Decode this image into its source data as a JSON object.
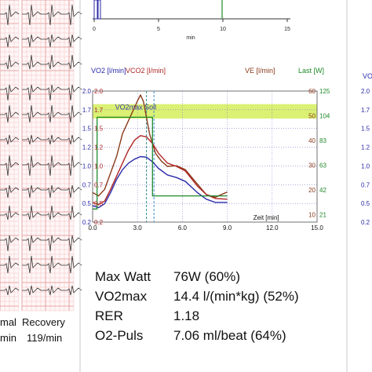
{
  "ecg": {
    "left_line1": "mal",
    "left_line2": "min",
    "right_line1": "Recovery",
    "right_line2": "119/min"
  },
  "top_chart": {
    "x_ticks": [
      "0",
      "5",
      "10",
      "15"
    ],
    "xlabel": "min"
  },
  "chart_data": [
    {
      "type": "line",
      "xlabel": "Zeit [min]",
      "x_ticks": [
        "0.0",
        "3.0",
        "6.0",
        "9.0",
        "12.0",
        "15.0"
      ],
      "xlim": [
        0,
        15
      ],
      "axes": [
        {
          "label": "VO2 [l/min]",
          "color": "#2a2aa8",
          "ticks": [
            "0.2",
            "0.5",
            "0.7",
            "1.0",
            "1.2",
            "1.5",
            "1.7",
            "2.0"
          ]
        },
        {
          "label": "VCO2 [l/min]",
          "color": "#b02525",
          "ticks": [
            "0.2",
            "0.5",
            "0.7",
            "1.0",
            "1.2",
            "1.5",
            "1.7",
            "2.0"
          ]
        },
        {
          "label": "VE [l/min]",
          "color": "#8a3a1a",
          "ticks": [
            "10",
            "20",
            "30",
            "40",
            "50",
            "60"
          ]
        },
        {
          "label": "Last [W]",
          "color": "#1f8a2a",
          "ticks": [
            "21",
            "42",
            "63",
            "83",
            "104",
            "125"
          ]
        }
      ],
      "band": {
        "label": "VO2max Soll",
        "ymin": 1.58,
        "ymax": 1.8,
        "color": "#d4ef5a"
      },
      "grid": true,
      "ylim": [
        0,
        2.0
      ],
      "vlines": [
        3.6,
        4.1
      ],
      "series": [
        {
          "color": "#8a3a1a",
          "x": [
            0.0,
            0.4,
            0.8,
            1.2,
            1.6,
            2.0,
            2.4,
            2.8,
            3.0,
            3.2,
            3.4,
            3.6,
            3.8,
            4.2,
            4.6,
            5.0,
            5.6,
            6.2,
            7.0,
            7.6,
            8.2,
            9.0
          ],
          "y": [
            0.45,
            0.4,
            0.5,
            0.75,
            1.0,
            1.35,
            1.55,
            1.75,
            1.85,
            1.94,
            1.84,
            1.6,
            1.35,
            1.05,
            0.93,
            0.85,
            0.86,
            0.8,
            0.58,
            0.42,
            0.38,
            0.46
          ]
        },
        {
          "color": "#b02525",
          "x": [
            0.0,
            0.4,
            0.8,
            1.2,
            1.6,
            2.0,
            2.4,
            2.8,
            3.2,
            3.6,
            4.0,
            4.4,
            5.0,
            5.6,
            6.2,
            7.0,
            7.6,
            8.2,
            9.0
          ],
          "y": [
            0.3,
            0.27,
            0.32,
            0.5,
            0.7,
            0.9,
            1.1,
            1.25,
            1.32,
            1.3,
            1.2,
            1.05,
            0.9,
            0.85,
            0.78,
            0.55,
            0.42,
            0.36,
            0.35
          ]
        },
        {
          "color": "#2a2aa8",
          "x": [
            0.0,
            0.4,
            0.8,
            1.2,
            1.6,
            2.0,
            2.4,
            2.8,
            3.2,
            3.6,
            4.0,
            4.4,
            5.0,
            5.6,
            6.2,
            7.0,
            7.6,
            8.2,
            9.0
          ],
          "y": [
            0.25,
            0.22,
            0.28,
            0.45,
            0.65,
            0.8,
            0.9,
            0.96,
            1.0,
            0.99,
            0.92,
            0.82,
            0.72,
            0.68,
            0.62,
            0.45,
            0.35,
            0.3,
            0.3
          ]
        },
        {
          "color": "#1f8a2a",
          "x": [
            0.0,
            0.3,
            0.3,
            4.0,
            4.0,
            9.0
          ],
          "y": [
            0.2,
            0.2,
            1.6,
            1.6,
            0.4,
            0.4
          ]
        }
      ]
    }
  ],
  "stats": [
    {
      "label": "Max Watt",
      "value": "76W (60%)"
    },
    {
      "label": "VO2max",
      "value": "14.4 l/(min*kg) (52%)"
    },
    {
      "label": "RER",
      "value": "1.18"
    },
    {
      "label": "O2-Puls",
      "value": "7.06 ml/beat (64%)"
    }
  ],
  "right_axis": {
    "label": "VO",
    "ticks": [
      "2.0",
      "1.7",
      "1.5",
      "1.2",
      "1.0",
      "0.7",
      "0.5",
      "0.2"
    ]
  }
}
